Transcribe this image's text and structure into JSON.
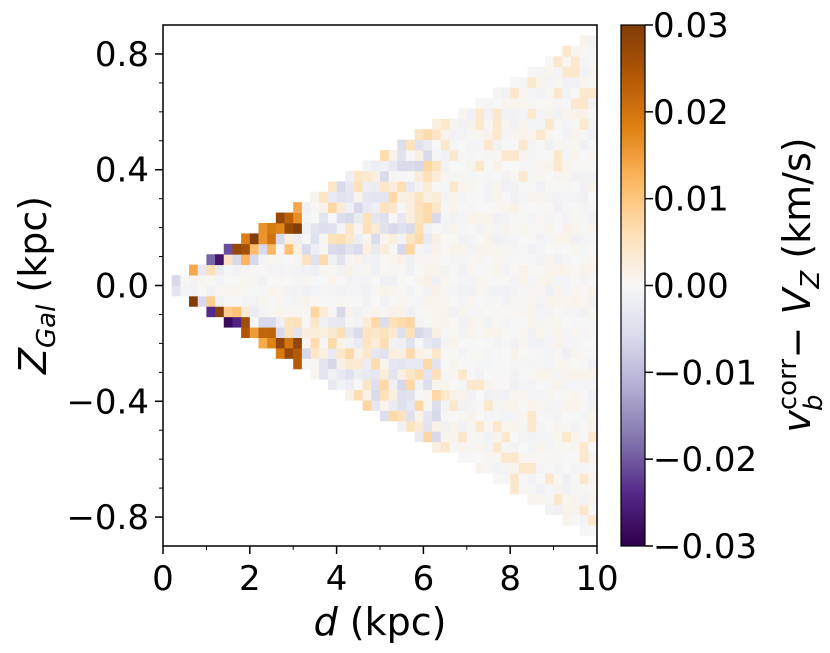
{
  "chart_data": {
    "type": "heatmap",
    "title": "",
    "xlabel": "d (kpc)",
    "ylabel": "Z_Gal (kpc)",
    "colorbar_label": "v_b^corr − V_Z (km/s)",
    "xlim": [
      0,
      10
    ],
    "ylim": [
      -0.9,
      0.9
    ],
    "x_ticks": [
      0,
      2,
      4,
      6,
      8,
      10
    ],
    "x_tick_labels": [
      "0",
      "2",
      "4",
      "6",
      "8",
      "10"
    ],
    "y_ticks": [
      0.8,
      0.4,
      0.0,
      -0.4,
      -0.8
    ],
    "y_tick_labels": [
      "0.8",
      "0.4",
      "0.0",
      "−0.4",
      "−0.8"
    ],
    "colorbar": {
      "range": [
        -0.03,
        0.03
      ],
      "ticks": [
        0.03,
        0.02,
        0.01,
        0.0,
        -0.01,
        -0.02,
        -0.03
      ],
      "tick_labels": [
        "0.03",
        "0.02",
        "0.01",
        "0.00",
        "−0.01",
        "−0.02",
        "−0.03"
      ],
      "colormap": "PuOr (purple negative, orange positive)",
      "colors": [
        "#2d004b",
        "#542788",
        "#8073ac",
        "#b2abd2",
        "#d8daeb",
        "#f7f7f7",
        "#fee0b6",
        "#fdb863",
        "#e08214",
        "#b35806",
        "#7f3b08"
      ]
    },
    "grid": false,
    "domain_description": "Wedge-shaped coverage: |Z_Gal| up to about 0.085 × d; mean difference near 0 (light gray) everywhere except the upper/lower edges near d = 1–3 kpc which show strong orange (+0.02 to +0.03) and purple (−0.02 to −0.03) pixels, and faint orange/lavender speckles at 3–6 kpc."
  }
}
